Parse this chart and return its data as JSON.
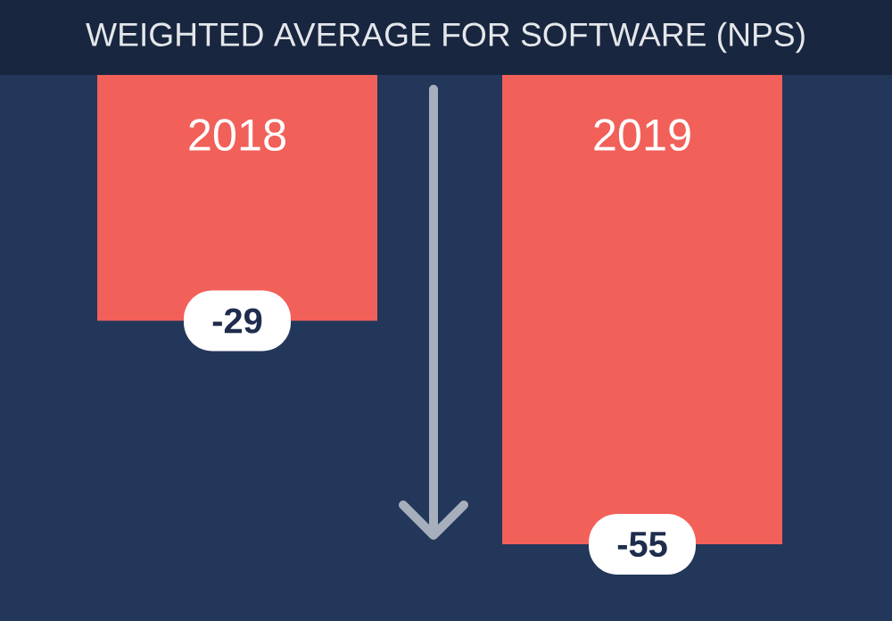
{
  "chart_data": {
    "type": "bar",
    "title": "WEIGHTED AVERAGE FOR SOFTWARE (NPS)",
    "categories": [
      "2018",
      "2019"
    ],
    "values": [
      -29,
      -55
    ],
    "color": "#f2605a",
    "data_labels": true
  }
}
